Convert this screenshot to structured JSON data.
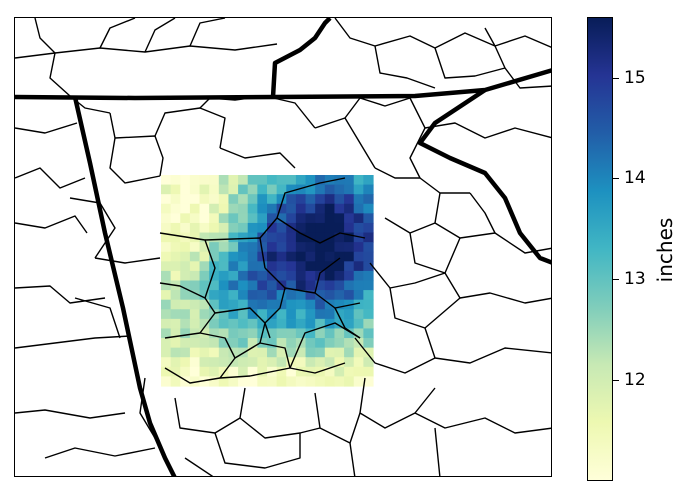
{
  "colorbar": {
    "label": "inches",
    "min": 11.0,
    "max": 15.6,
    "ticks": [
      "12",
      "13",
      "14",
      "15"
    ],
    "colors": [
      "#ffffd9",
      "#edf8b1",
      "#c7e9b4",
      "#7fcdbb",
      "#41b6c4",
      "#1d91c0",
      "#225ea8",
      "#253494",
      "#081d58"
    ]
  },
  "grid": {
    "rows": 22,
    "cols": 22
  }
}
